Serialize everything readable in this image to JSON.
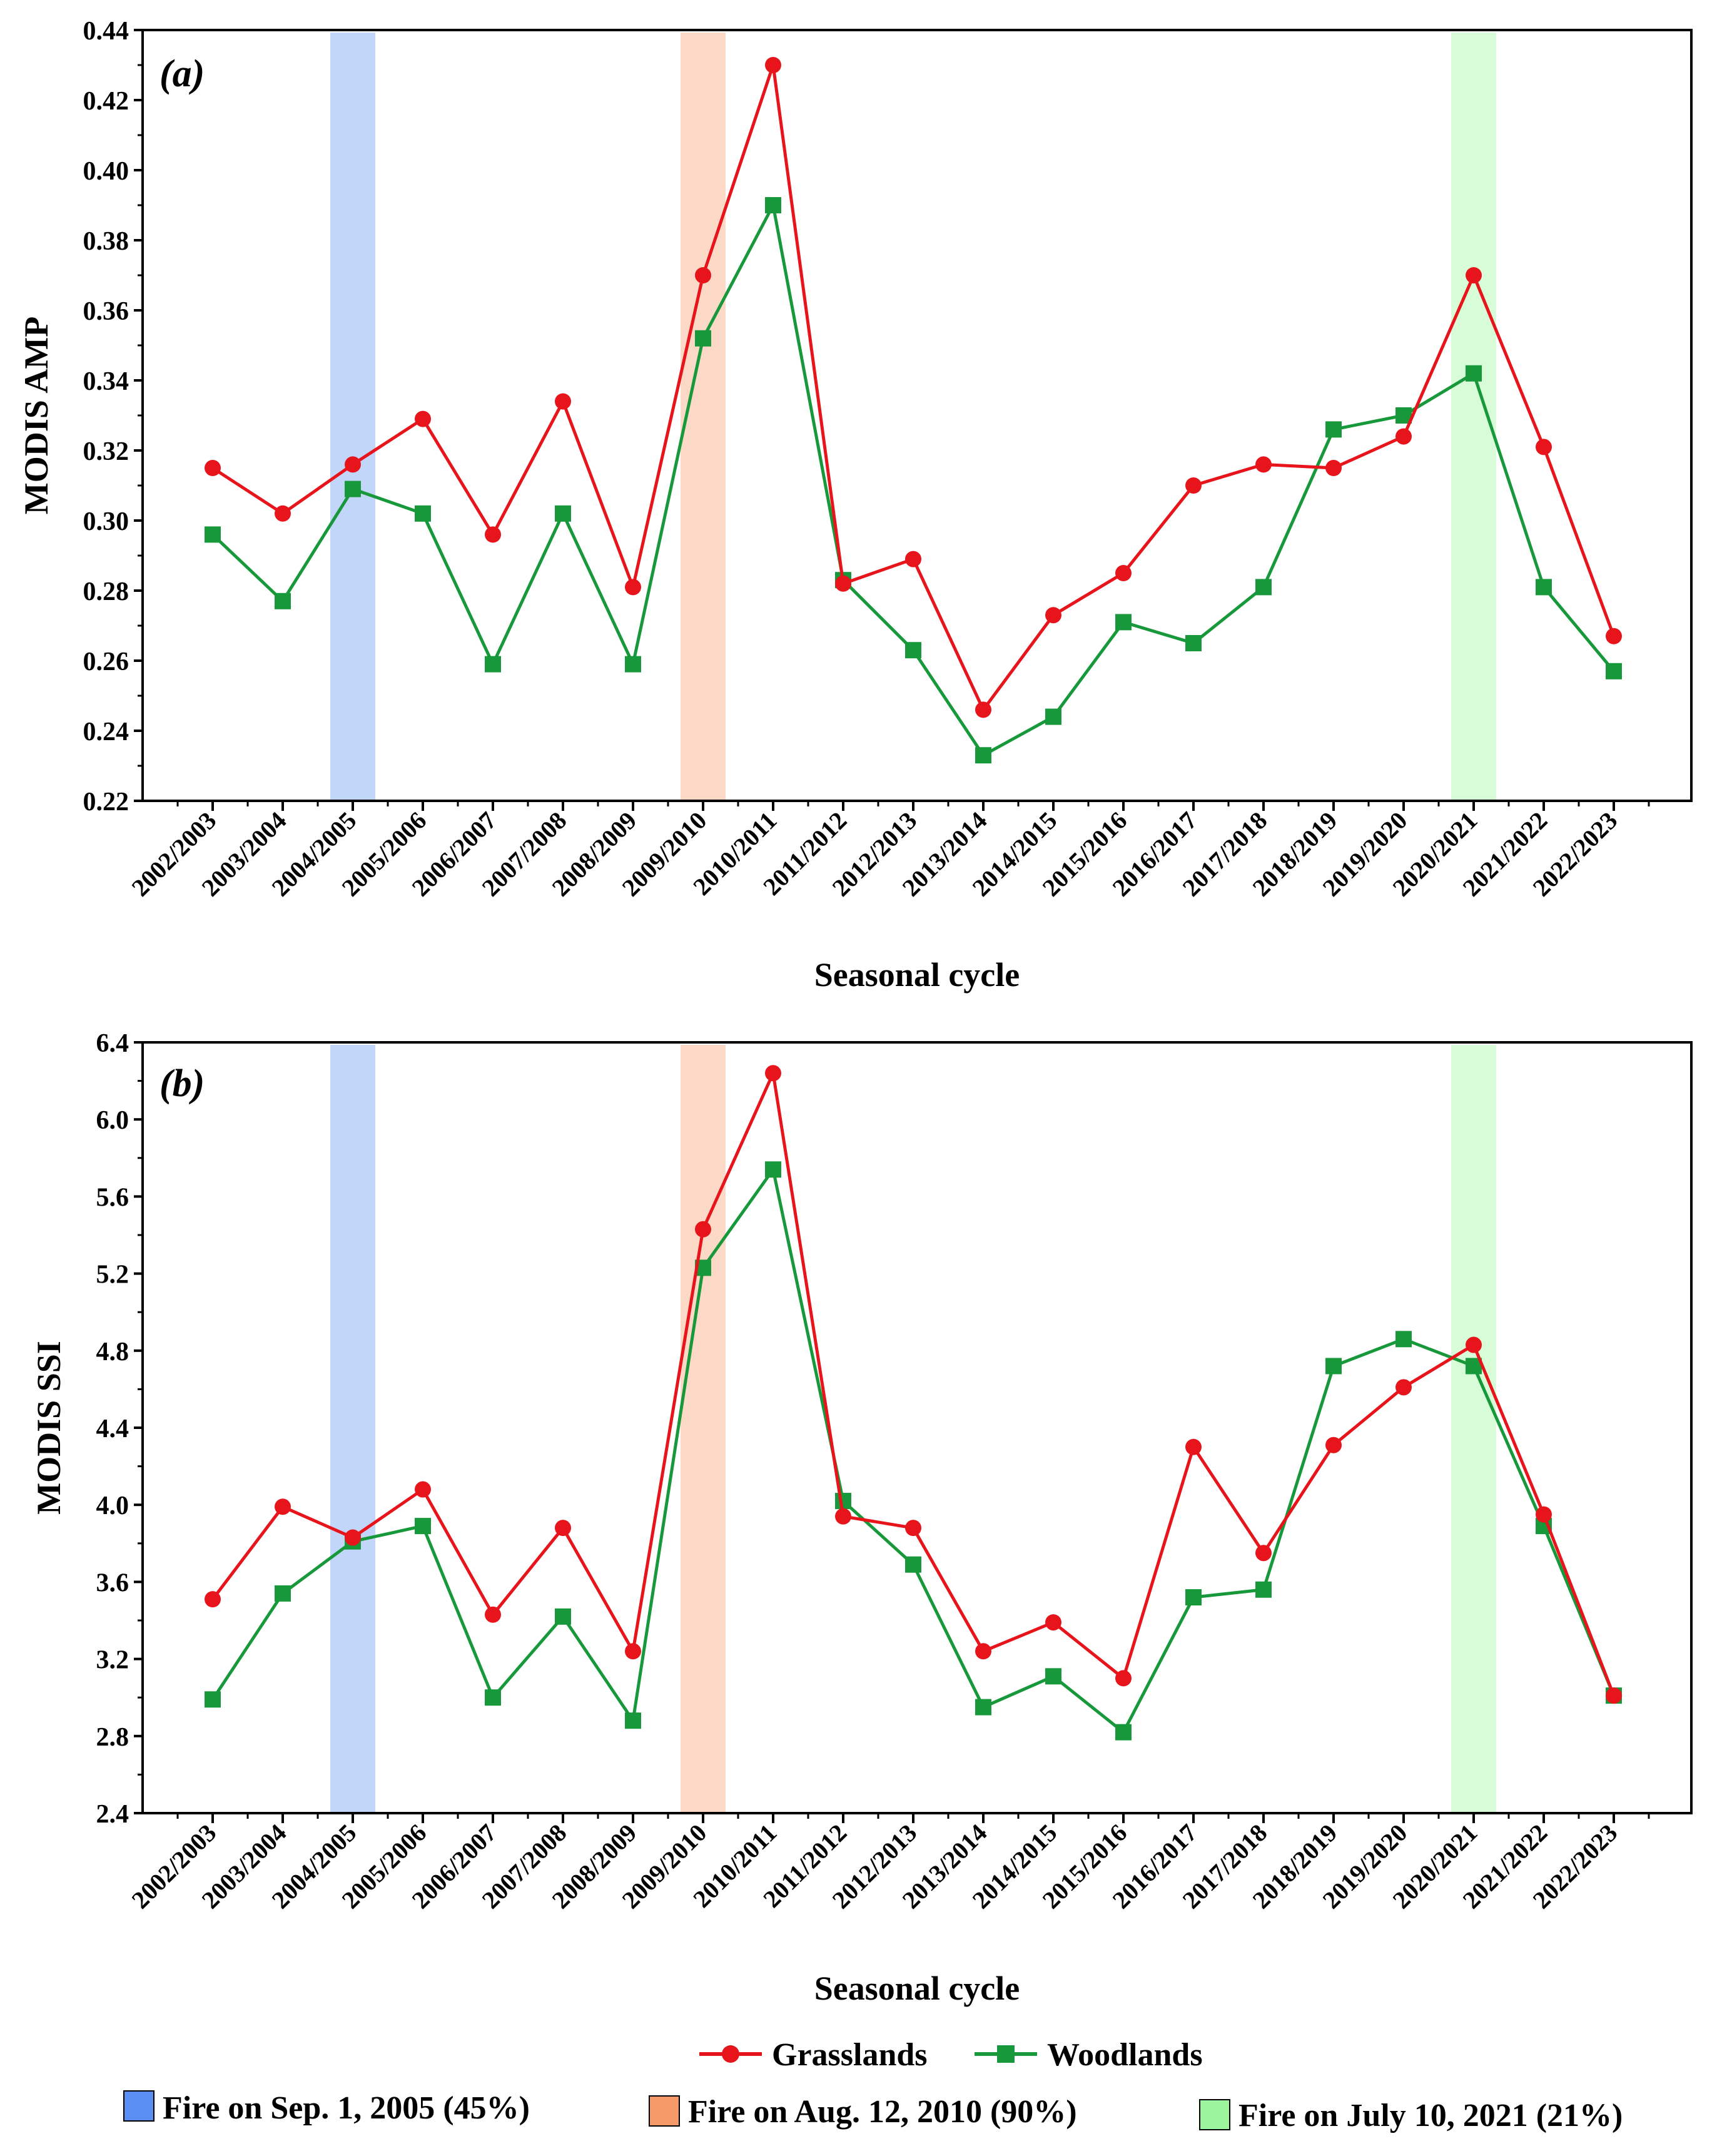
{
  "colors": {
    "grasslands": "#e8141b",
    "woodlands": "#17983a",
    "fire1": "#a8c4f8",
    "fire2": "#fbc9ae",
    "fire3": "#c8fbc8",
    "fire1_swatch": "#5b8ef2",
    "fire2_swatch": "#f79a6a",
    "fire3_swatch": "#9cf59c"
  },
  "chart_data": [
    {
      "type": "line",
      "panel_label": "(a)",
      "xlabel": "Seasonal cycle",
      "ylabel": "MODIS AMP",
      "ylim": [
        0.22,
        0.44
      ],
      "ytick_labels": [
        "0.22",
        "0.24",
        "0.26",
        "0.28",
        "0.30",
        "0.32",
        "0.34",
        "0.36",
        "0.38",
        "0.40",
        "0.42",
        "0.44"
      ],
      "categories": [
        "2002/2003",
        "2003/2004",
        "2004/2005",
        "2005/2006",
        "2006/2007",
        "2007/2008",
        "2008/2009",
        "2009/2010",
        "2010/2011",
        "2011/2012",
        "2012/2013",
        "2013/2014",
        "2014/2015",
        "2015/2016",
        "2016/2017",
        "2017/2018",
        "2018/2019",
        "2019/2020",
        "2020/2021",
        "2021/2022",
        "2022/2023"
      ],
      "fire_periods": [
        "2004/2005",
        "2009/2010",
        "2020/2021"
      ],
      "series": [
        {
          "name": "Grasslands",
          "values": [
            0.315,
            0.302,
            0.316,
            0.329,
            0.296,
            0.334,
            0.281,
            0.37,
            0.43,
            0.282,
            0.289,
            0.246,
            0.273,
            0.285,
            0.31,
            0.316,
            0.315,
            0.324,
            0.37,
            0.321,
            0.267
          ]
        },
        {
          "name": "Woodlands",
          "values": [
            0.296,
            0.277,
            0.309,
            0.302,
            0.259,
            0.302,
            0.259,
            0.352,
            0.39,
            0.283,
            0.263,
            0.233,
            0.244,
            0.271,
            0.265,
            0.281,
            0.326,
            0.33,
            0.342,
            0.281,
            0.257
          ]
        }
      ]
    },
    {
      "type": "line",
      "panel_label": "(b)",
      "xlabel": "Seasonal cycle",
      "ylabel": "MODIS SSI",
      "ylim": [
        2.4,
        6.4
      ],
      "ytick_labels": [
        "2.4",
        "2.8",
        "3.2",
        "3.6",
        "4.0",
        "4.4",
        "4.8",
        "5.2",
        "5.6",
        "6.0",
        "6.4"
      ],
      "categories": [
        "2002/2003",
        "2003/2004",
        "2004/2005",
        "2005/2006",
        "2006/2007",
        "2007/2008",
        "2008/2009",
        "2009/2010",
        "2010/2011",
        "2011/2012",
        "2012/2013",
        "2013/2014",
        "2014/2015",
        "2015/2016",
        "2016/2017",
        "2017/2018",
        "2018/2019",
        "2019/2020",
        "2020/2021",
        "2021/2022",
        "2022/2023"
      ],
      "fire_periods": [
        "2004/2005",
        "2009/2010",
        "2020/2021"
      ],
      "series": [
        {
          "name": "Grasslands",
          "values": [
            3.51,
            3.99,
            3.83,
            4.08,
            3.43,
            3.88,
            3.24,
            5.43,
            6.24,
            3.94,
            3.88,
            3.24,
            3.39,
            3.1,
            4.3,
            3.75,
            4.31,
            4.61,
            4.83,
            3.95,
            3.01
          ]
        },
        {
          "name": "Woodlands",
          "values": [
            2.99,
            3.54,
            3.81,
            3.89,
            3.0,
            3.42,
            2.88,
            5.23,
            5.74,
            4.02,
            3.69,
            2.95,
            3.11,
            2.82,
            3.52,
            3.56,
            4.72,
            4.86,
            4.72,
            3.89,
            3.01
          ]
        }
      ]
    }
  ],
  "legend": {
    "series": [
      "Grasslands",
      "Woodlands"
    ],
    "fires": [
      "Fire on Sep. 1, 2005 (45%)",
      "Fire on Aug. 12, 2010 (90%)",
      "Fire on July 10, 2021 (21%)"
    ]
  }
}
